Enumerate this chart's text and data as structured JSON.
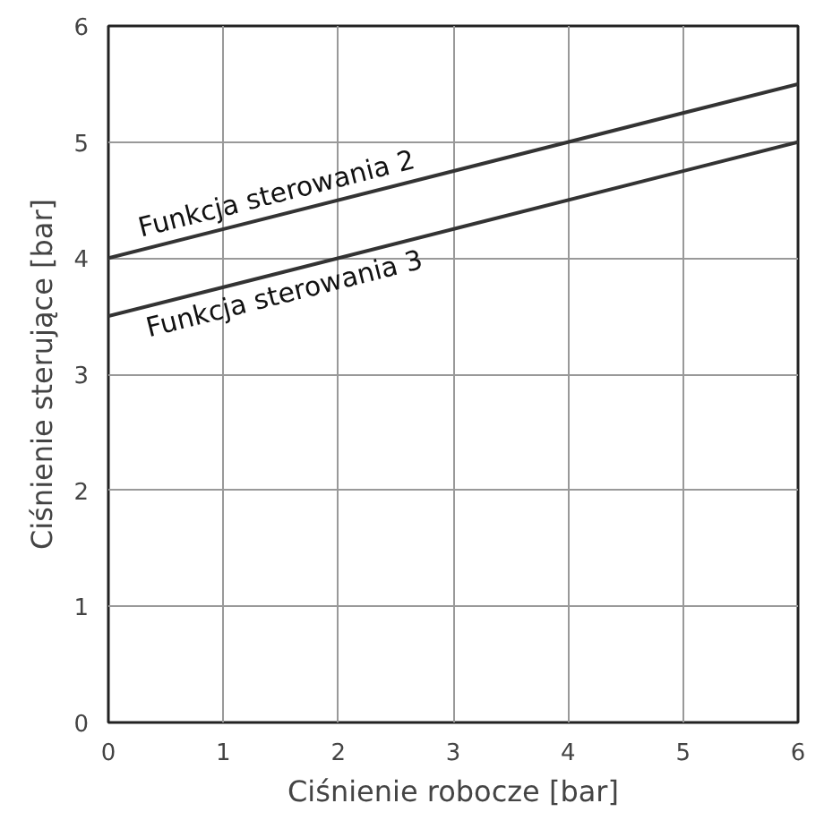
{
  "chart_data": {
    "type": "line",
    "xlabel": "Ciśnienie robocze [bar]",
    "ylabel": "Ciśnienie sterujące [bar]",
    "xlim": [
      0,
      6
    ],
    "ylim": [
      0,
      6
    ],
    "xticks": [
      0,
      1,
      2,
      3,
      4,
      5,
      6
    ],
    "yticks": [
      0,
      1,
      2,
      3,
      4,
      5,
      6
    ],
    "grid": true,
    "x": [
      0,
      6
    ],
    "series": [
      {
        "name": "Funkcja sterowania 2",
        "color": "#333333",
        "values": [
          4,
          5.5
        ]
      },
      {
        "name": "Funkcja sterowania 3",
        "color": "#333333",
        "values": [
          3.5,
          5
        ]
      }
    ]
  }
}
